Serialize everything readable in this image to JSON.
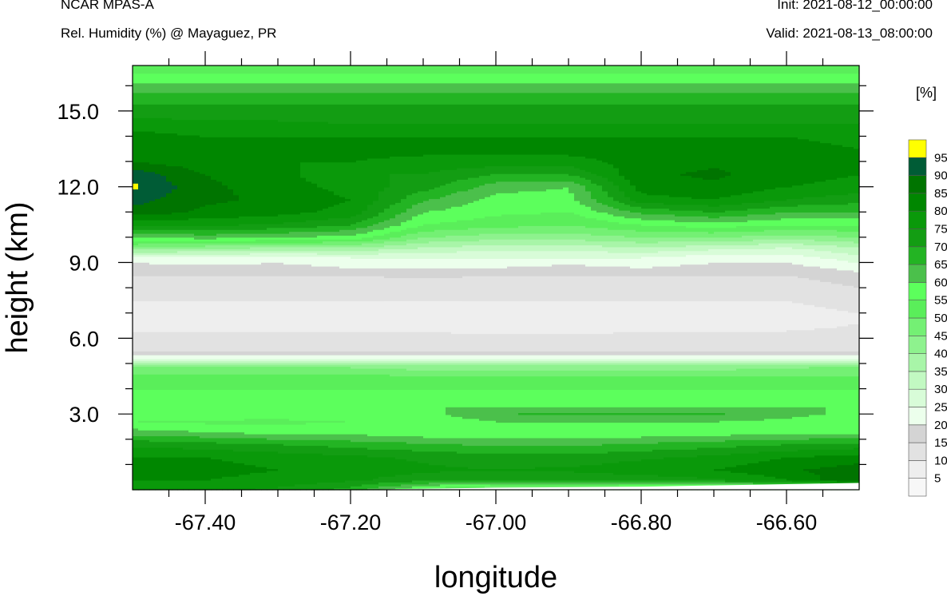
{
  "header": {
    "left_line1": "NCAR MPAS-A",
    "left_line2": "Rel. Humidity (%) @ Mayaguez, PR",
    "right_line1": "Init: 2021-08-12_00:00:00",
    "right_line2": "Valid: 2021-08-13_08:00:00"
  },
  "chart_data": {
    "type": "heatmap",
    "title": "Rel. Humidity (%) @ Mayaguez, PR",
    "xlabel": "longitude",
    "ylabel": "height (km)",
    "xlim": [
      -67.5,
      -66.5
    ],
    "ylim": [
      0,
      16.8
    ],
    "xticks": [
      -67.4,
      -67.2,
      -67.0,
      -66.8,
      -66.6
    ],
    "xtick_labels": [
      "-67.40",
      "-67.20",
      "-67.00",
      "-66.80",
      "-66.60"
    ],
    "yticks": [
      3,
      6,
      9,
      12,
      15
    ],
    "ytick_labels": [
      "3.0",
      "6.0",
      "9.0",
      "12.0",
      "15.0"
    ],
    "colorbar": {
      "units": "[%]",
      "levels": [
        5,
        10,
        15,
        20,
        25,
        30,
        35,
        40,
        45,
        50,
        55,
        60,
        65,
        70,
        75,
        80,
        85,
        90,
        95
      ],
      "level_labels": [
        "5",
        "10",
        "15",
        "20",
        "25",
        "30",
        "35",
        "40",
        "45",
        "50",
        "55",
        "60",
        "65",
        "70",
        "75",
        "80",
        "85",
        "90",
        "95"
      ],
      "colors": [
        "#f7f7f7",
        "#eeeeee",
        "#e2e2e2",
        "#d4d4d4",
        "#ecffec",
        "#d8fcd8",
        "#c2f9c2",
        "#a8f5a8",
        "#8ef28e",
        "#74f074",
        "#5aee5a",
        "#5cff5c",
        "#4bc04b",
        "#23b423",
        "#139d13",
        "#0a990a",
        "#008700",
        "#007400",
        "#005c36",
        "#ffff00"
      ]
    },
    "profile_heights_km": [
      0.0,
      0.4,
      0.8,
      1.3,
      1.8,
      2.3,
      2.7,
      3.0,
      3.3,
      3.6,
      4.0,
      4.5,
      4.9,
      5.2,
      5.5,
      6.0,
      6.6,
      7.0,
      7.5,
      8.0,
      8.5,
      8.8,
      9.2,
      9.6,
      10.0,
      10.5,
      11.0,
      11.5,
      12.0,
      12.5,
      13.0,
      13.5,
      14.0,
      14.5,
      15.0,
      15.5,
      16.0,
      16.5,
      16.8
    ],
    "profiles": [
      {
        "lon": -67.5,
        "rh": [
          78,
          80,
          82,
          80,
          74,
          62,
          55,
          58,
          60,
          58,
          55,
          52,
          45,
          25,
          15,
          12,
          8,
          8,
          10,
          12,
          15,
          18,
          22,
          45,
          60,
          75,
          88,
          92,
          96,
          93,
          85,
          80,
          82,
          78,
          72,
          68,
          62,
          55,
          50
        ]
      },
      {
        "lon": -67.4,
        "rh": [
          76,
          80,
          82,
          80,
          72,
          60,
          54,
          58,
          60,
          58,
          55,
          52,
          45,
          25,
          15,
          12,
          8,
          8,
          10,
          12,
          15,
          18,
          25,
          42,
          62,
          76,
          84,
          86,
          86,
          85,
          82,
          80,
          80,
          76,
          72,
          68,
          62,
          55,
          50
        ]
      },
      {
        "lon": -67.3,
        "rh": [
          74,
          78,
          80,
          78,
          70,
          58,
          54,
          57,
          60,
          58,
          55,
          52,
          45,
          25,
          15,
          12,
          8,
          8,
          10,
          12,
          15,
          18,
          22,
          40,
          60,
          74,
          82,
          84,
          83,
          82,
          80,
          82,
          80,
          76,
          72,
          68,
          62,
          55,
          50
        ]
      },
      {
        "lon": -67.2,
        "rh": [
          68,
          76,
          78,
          76,
          68,
          58,
          55,
          58,
          60,
          58,
          55,
          52,
          44,
          25,
          15,
          12,
          8,
          8,
          10,
          12,
          15,
          20,
          25,
          40,
          58,
          70,
          78,
          80,
          78,
          75,
          80,
          82,
          80,
          75,
          72,
          68,
          62,
          55,
          50
        ]
      },
      {
        "lon": -67.1,
        "rh": [
          52,
          72,
          76,
          74,
          66,
          56,
          55,
          58,
          60,
          58,
          55,
          50,
          42,
          25,
          15,
          12,
          7,
          7,
          10,
          12,
          16,
          20,
          25,
          35,
          45,
          55,
          60,
          66,
          72,
          75,
          78,
          82,
          80,
          75,
          72,
          68,
          62,
          55,
          50
        ]
      },
      {
        "lon": -67.0,
        "rh": [
          40,
          70,
          75,
          72,
          64,
          56,
          60,
          65,
          60,
          57,
          55,
          50,
          42,
          25,
          15,
          12,
          6,
          6,
          10,
          12,
          15,
          20,
          25,
          32,
          42,
          52,
          56,
          58,
          62,
          70,
          78,
          82,
          80,
          75,
          72,
          68,
          62,
          55,
          50
        ]
      },
      {
        "lon": -66.9,
        "rh": [
          40,
          70,
          76,
          72,
          64,
          56,
          60,
          66,
          60,
          57,
          55,
          50,
          42,
          25,
          15,
          12,
          6,
          6,
          10,
          12,
          15,
          18,
          25,
          32,
          42,
          50,
          55,
          58,
          60,
          70,
          78,
          82,
          80,
          75,
          72,
          68,
          62,
          55,
          50
        ]
      },
      {
        "lon": -66.8,
        "rh": [
          40,
          72,
          78,
          74,
          66,
          56,
          60,
          66,
          60,
          57,
          55,
          50,
          42,
          25,
          15,
          12,
          7,
          7,
          10,
          12,
          15,
          20,
          25,
          35,
          45,
          55,
          66,
          78,
          82,
          84,
          82,
          82,
          80,
          75,
          72,
          68,
          62,
          55,
          50
        ]
      },
      {
        "lon": -66.7,
        "rh": [
          40,
          74,
          80,
          76,
          68,
          57,
          60,
          66,
          60,
          57,
          55,
          50,
          42,
          25,
          15,
          12,
          8,
          8,
          10,
          12,
          15,
          18,
          22,
          32,
          45,
          58,
          70,
          80,
          84,
          86,
          84,
          82,
          80,
          75,
          72,
          68,
          62,
          55,
          50
        ]
      },
      {
        "lon": -66.6,
        "rh": [
          40,
          80,
          84,
          80,
          70,
          58,
          58,
          62,
          60,
          57,
          55,
          50,
          44,
          25,
          15,
          12,
          8,
          8,
          10,
          12,
          15,
          18,
          22,
          30,
          42,
          55,
          65,
          75,
          80,
          82,
          82,
          82,
          80,
          75,
          72,
          68,
          62,
          55,
          50
        ]
      },
      {
        "lon": -66.5,
        "rh": [
          40,
          90,
          88,
          82,
          72,
          58,
          55,
          58,
          60,
          57,
          55,
          50,
          45,
          25,
          15,
          12,
          10,
          10,
          12,
          15,
          18,
          22,
          28,
          35,
          45,
          55,
          65,
          72,
          78,
          80,
          80,
          80,
          78,
          75,
          72,
          68,
          62,
          55,
          50
        ]
      }
    ],
    "terrain_height_km": [
      {
        "lon": -67.5,
        "h": 0.0
      },
      {
        "lon": -67.2,
        "h": 0.0
      },
      {
        "lon": -67.0,
        "h": 0.08
      },
      {
        "lon": -66.8,
        "h": 0.12
      },
      {
        "lon": -66.6,
        "h": 0.22
      },
      {
        "lon": -66.5,
        "h": 0.27
      }
    ]
  }
}
